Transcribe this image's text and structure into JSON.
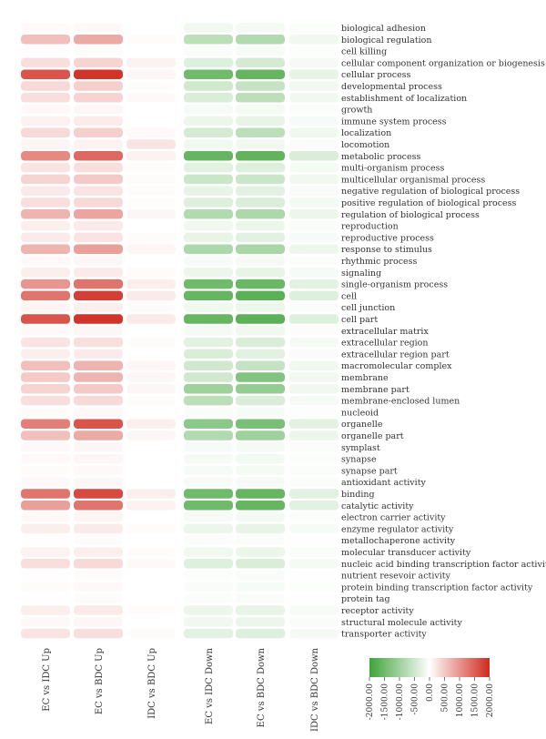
{
  "chart_data": {
    "type": "heatmap",
    "columns": [
      "EC vs IDC Up",
      "EC vs BDC Up",
      "IDC vs BDC Up",
      "EC vs IDC Down",
      "EC vs BDC Down",
      "IDC vs BDC Down"
    ],
    "rows": [
      "biological adhesion",
      "biological regulation",
      "cell killing",
      "cellular component organization or biogenesis",
      "cellular process",
      "developmental process",
      "establishment of localization",
      "growth",
      "immune system process",
      "localization",
      "locomotion",
      "metabolic process",
      "multi-organism process",
      "multicellular organismal process",
      "negative regulation of biological process",
      "positive regulation of biological process",
      "regulation of biological process",
      "reproduction",
      "reproductive process",
      "response to stimulus",
      "rhythmic process",
      "signaling",
      "single-organism process",
      "cell",
      "cell junction",
      "cell part",
      "extracellular matrix",
      "extracellular region",
      "extracellular region part",
      "macromolecular complex",
      "membrane",
      "membrane part",
      "membrane-enclosed lumen",
      "nucleoid",
      "organelle",
      "organelle part",
      "symplast",
      "synapse",
      "synapse part",
      "antioxidant activity",
      "binding",
      "catalytic activity",
      "electron carrier activity",
      "enzyme regulator activity",
      "metallochaperone activity",
      "molecular transducer activity",
      "nucleic acid binding transcription factor activity",
      "nutrient resevoir activity",
      "protein binding transcription factor activity",
      "protein tag",
      "receptor activity",
      "structural molecule activity",
      "transporter activity"
    ],
    "values": [
      [
        50,
        60,
        0,
        -150,
        -100,
        -50
      ],
      [
        600,
        800,
        40,
        -700,
        -800,
        -150
      ],
      [
        30,
        40,
        0,
        -60,
        -80,
        -30
      ],
      [
        300,
        400,
        120,
        -350,
        -450,
        -100
      ],
      [
        1600,
        1900,
        80,
        -1500,
        -1600,
        -250
      ],
      [
        350,
        450,
        40,
        -500,
        -600,
        -150
      ],
      [
        300,
        400,
        60,
        -400,
        -700,
        -150
      ],
      [
        60,
        80,
        0,
        -80,
        -100,
        -40
      ],
      [
        120,
        180,
        0,
        -200,
        -250,
        -80
      ],
      [
        350,
        450,
        60,
        -450,
        -700,
        -150
      ],
      [
        100,
        120,
        250,
        -150,
        -150,
        -60
      ],
      [
        1100,
        1400,
        120,
        -1600,
        -1650,
        -400
      ],
      [
        250,
        300,
        40,
        -300,
        -350,
        -100
      ],
      [
        400,
        500,
        40,
        -550,
        -550,
        -150
      ],
      [
        200,
        250,
        40,
        -250,
        -300,
        -80
      ],
      [
        300,
        350,
        40,
        -350,
        -400,
        -120
      ],
      [
        700,
        850,
        80,
        -800,
        -850,
        -200
      ],
      [
        150,
        200,
        0,
        -150,
        -200,
        -60
      ],
      [
        200,
        250,
        40,
        -250,
        -300,
        -80
      ],
      [
        700,
        900,
        80,
        -850,
        -900,
        -200
      ],
      [
        60,
        80,
        0,
        -80,
        -100,
        -40
      ],
      [
        150,
        200,
        40,
        -200,
        -250,
        -80
      ],
      [
        1000,
        1300,
        150,
        -1500,
        -1550,
        -300
      ],
      [
        1300,
        1800,
        200,
        -1600,
        -1700,
        -350
      ],
      [
        100,
        150,
        40,
        -150,
        -200,
        -60
      ],
      [
        1600,
        1900,
        200,
        -1600,
        -1700,
        -350
      ],
      [
        60,
        80,
        0,
        -100,
        -150,
        -40
      ],
      [
        250,
        300,
        40,
        -300,
        -400,
        -100
      ],
      [
        150,
        200,
        0,
        -400,
        -300,
        -60
      ],
      [
        600,
        700,
        80,
        -500,
        -600,
        -150
      ],
      [
        500,
        700,
        80,
        -500,
        -1300,
        -150
      ],
      [
        400,
        500,
        80,
        -1000,
        -1100,
        -150
      ],
      [
        300,
        350,
        40,
        -700,
        -400,
        -100
      ],
      [
        40,
        60,
        0,
        -60,
        -80,
        -30
      ],
      [
        1200,
        1600,
        150,
        -1200,
        -1400,
        -300
      ],
      [
        600,
        800,
        80,
        -800,
        -1000,
        -200
      ],
      [
        60,
        80,
        0,
        -80,
        -100,
        -40
      ],
      [
        60,
        80,
        0,
        -100,
        -120,
        -40
      ],
      [
        40,
        60,
        0,
        -80,
        -100,
        -40
      ],
      [
        60,
        80,
        0,
        -80,
        -100,
        -40
      ],
      [
        1300,
        1700,
        150,
        -1500,
        -1600,
        -300
      ],
      [
        900,
        1300,
        120,
        -1500,
        -1600,
        -300
      ],
      [
        60,
        100,
        0,
        -100,
        -120,
        -40
      ],
      [
        150,
        200,
        40,
        -200,
        -250,
        -80
      ],
      [
        20,
        40,
        0,
        -40,
        -60,
        -20
      ],
      [
        120,
        150,
        40,
        -150,
        -200,
        -60
      ],
      [
        300,
        350,
        60,
        -350,
        -400,
        -100
      ],
      [
        20,
        40,
        0,
        -40,
        -60,
        -20
      ],
      [
        40,
        60,
        0,
        -60,
        -80,
        -30
      ],
      [
        20,
        40,
        0,
        -40,
        -60,
        -20
      ],
      [
        150,
        200,
        40,
        -200,
        -250,
        -80
      ],
      [
        60,
        80,
        0,
        -150,
        -200,
        -60
      ],
      [
        250,
        300,
        40,
        -300,
        -350,
        -100
      ]
    ],
    "color_scale": {
      "min": -2000,
      "max": 2000,
      "low_color": "#3fa33a",
      "mid_color": "#ffffff",
      "high_color": "#cf2a1e",
      "ticks": [
        "-2000.00",
        "-1500.00",
        "-1000.00",
        "-500.00",
        "0.00",
        "500.00",
        "1000.00",
        "1500.00",
        "2000.00"
      ],
      "placement": "bottom-right"
    },
    "title": "",
    "xlabel": "",
    "ylabel": ""
  }
}
